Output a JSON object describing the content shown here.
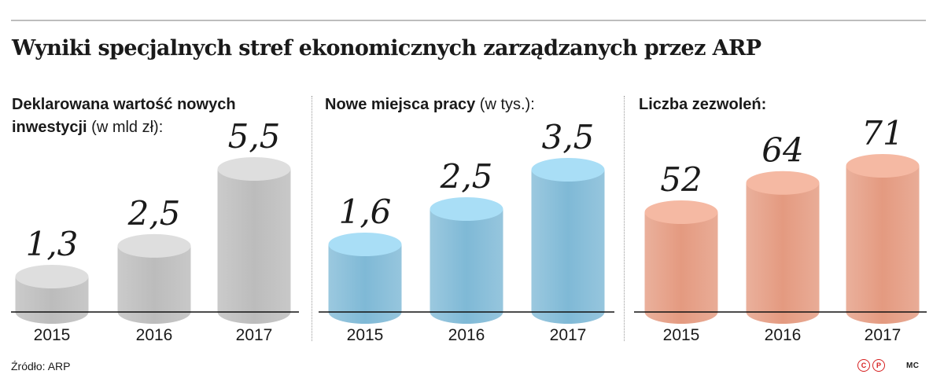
{
  "title": "Wyniki specjalnych stref ekonomicznych zarządzanych przez ARP",
  "colors": {
    "grey_body": "#bcbcbc",
    "grey_top": "#dedede",
    "blue_body": "#7fb9d6",
    "blue_top": "#a9def6",
    "salmon_body": "#e49a80",
    "salmon_top": "#f5b9a3"
  },
  "chart_data": [
    {
      "type": "bar",
      "label_bold": "Deklarowana wartość nowych inwestycji",
      "label_unit": "(w mld zł):",
      "categories": [
        "2015",
        "2016",
        "2017"
      ],
      "values": [
        1.3,
        2.5,
        5.5
      ],
      "value_labels": [
        "1,3",
        "2,5",
        "5,5"
      ],
      "ylim": [
        0,
        5.5
      ],
      "color": "grey"
    },
    {
      "type": "bar",
      "label_bold": "Nowe miejsca pracy",
      "label_unit": "(w tys.):",
      "categories": [
        "2015",
        "2016",
        "2017"
      ],
      "values": [
        1.6,
        2.5,
        3.5
      ],
      "value_labels": [
        "1,6",
        "2,5",
        "3,5"
      ],
      "ylim": [
        0,
        3.5
      ],
      "color": "blue"
    },
    {
      "type": "bar",
      "label_bold": "Liczba zezwoleń:",
      "label_unit": "",
      "categories": [
        "2015",
        "2016",
        "2017"
      ],
      "values": [
        52,
        64,
        71
      ],
      "value_labels": [
        "52",
        "64",
        "71"
      ],
      "ylim": [
        0,
        71
      ],
      "color": "salmon"
    }
  ],
  "footer": {
    "source": "Źródło: ARP",
    "logo_c": "C",
    "logo_p": "P",
    "author": "MC"
  }
}
